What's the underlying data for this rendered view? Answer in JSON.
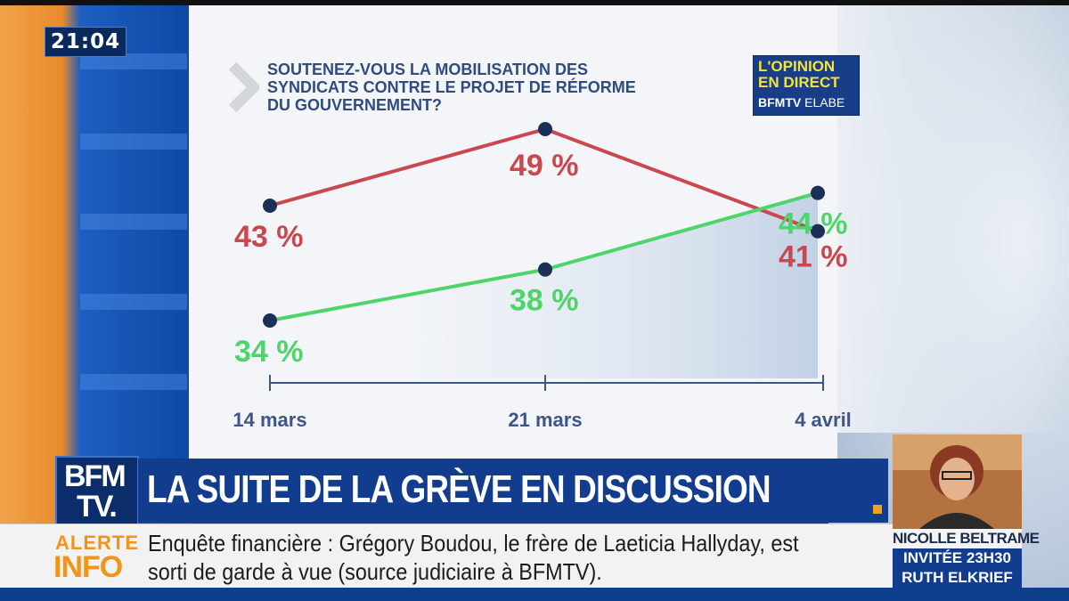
{
  "clock": "21:04",
  "opinion_badge": {
    "line1": "L'OPINION",
    "line2": "EN DIRECT",
    "brand": "BFMTV",
    "partner": "ELABE"
  },
  "logo": {
    "line1": "BFM",
    "line2": "TV."
  },
  "banner": {
    "title": "LA SUITE DE LA GRÈVE EN DISCUSSION"
  },
  "ticker": {
    "label1": "ALERTE",
    "label2": "INFO",
    "line1": "Enquête financière : Grégory Boudou, le frère de Laeticia Hallyday, est",
    "line2": "sorti de garde à vue (source judiciaire à BFMTV)."
  },
  "inset": {
    "name": "NICOLLE BELTRAME",
    "line2": "INVITÉE 23H30",
    "line3": "RUTH ELKRIEF"
  },
  "colors": {
    "red": "#c9484f",
    "green": "#4fd46a",
    "navy": "#1c2f57",
    "accent": "#f2a21b"
  },
  "chart_data": {
    "type": "line",
    "title": "SOUTENEZ-VOUS LA MOBILISATION DES SYNDICATS CONTRE LE PROJET DE RÉFORME DU GOUVERNEMENT?",
    "title_lines": [
      "SOUTENEZ-VOUS LA MOBILISATION DES",
      "SYNDICATS CONTRE LE PROJET DE RÉFORME",
      "DU GOUVERNEMENT?"
    ],
    "categories": [
      "14 mars",
      "21 mars",
      "4 avril"
    ],
    "series": [
      {
        "color": "#c9484f",
        "values": [
          43,
          49,
          41
        ],
        "labels": [
          "43 %",
          "49 %",
          "41 %"
        ]
      },
      {
        "color": "#4fd46a",
        "values": [
          34,
          38,
          44
        ],
        "labels": [
          "34 %",
          "38 %",
          "44 %"
        ]
      }
    ],
    "ylim": [
      30,
      51
    ],
    "grid": false
  }
}
